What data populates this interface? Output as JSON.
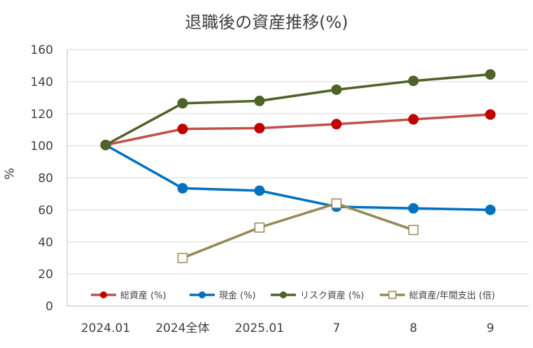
{
  "chart_data": {
    "type": "line",
    "title": "退職後の資産推移(%)",
    "xlabel": "",
    "ylabel": "%",
    "ylim": [
      0,
      160
    ],
    "yticks": [
      0,
      20,
      40,
      60,
      80,
      100,
      120,
      140,
      160
    ],
    "categories": [
      "2024.01",
      "2024全体",
      "2025.01",
      "7",
      "8",
      "9"
    ],
    "grid": true,
    "legend_position": "bottom-inside",
    "series": [
      {
        "name": "総資産 (%)",
        "color": "#c0504d",
        "marker": "circle",
        "marker_color": "#c00000",
        "values": [
          100.5,
          110.5,
          111,
          113.5,
          116.5,
          119.5
        ]
      },
      {
        "name": "現金 (%)",
        "color": "#0070c0",
        "marker": "circle",
        "marker_color": "#0070c0",
        "values": [
          100.5,
          73.5,
          72,
          62,
          61,
          60
        ]
      },
      {
        "name": "リスク資産 (%)",
        "color": "#4f6228",
        "marker": "circle",
        "marker_color": "#4f6228",
        "values": [
          100.5,
          126.5,
          128,
          135,
          140.5,
          144.5
        ]
      },
      {
        "name": "総資産/年間支出 (倍)",
        "color": "#948a54",
        "marker": "square",
        "marker_color": "#948a54",
        "values": [
          null,
          30,
          49,
          64,
          47.5,
          null
        ]
      }
    ]
  }
}
